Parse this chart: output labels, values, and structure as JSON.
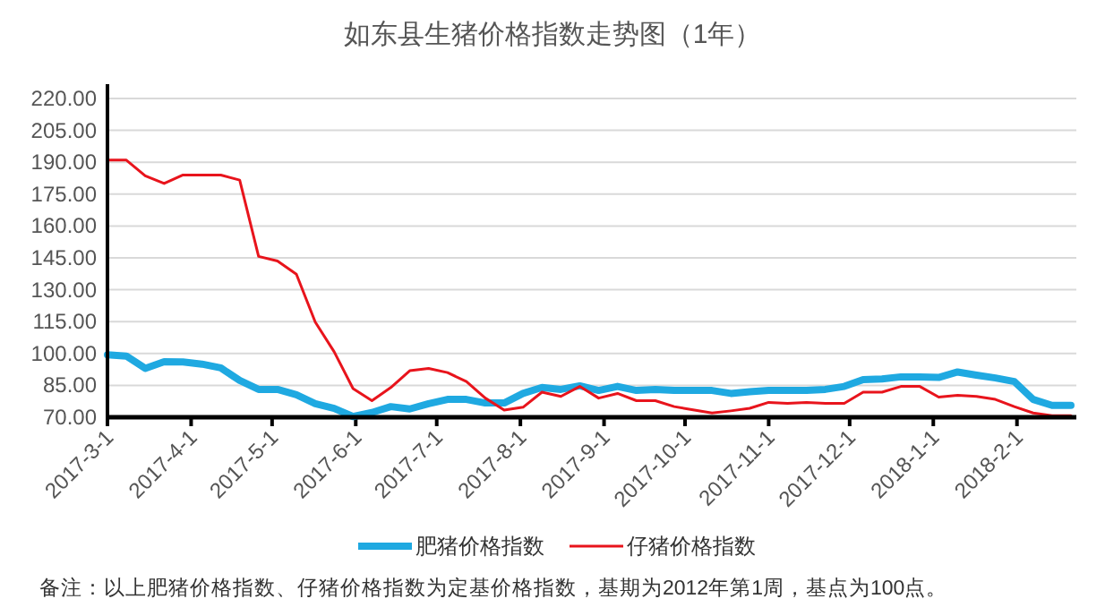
{
  "chart_data": {
    "type": "line",
    "title": "如东县生猪价格指数走势图（1年）",
    "x": [
      "2017-03-01",
      "2017-03-08",
      "2017-03-15",
      "2017-03-22",
      "2017-03-29",
      "2017-04-05",
      "2017-04-12",
      "2017-04-19",
      "2017-04-26",
      "2017-05-03",
      "2017-05-10",
      "2017-05-17",
      "2017-05-24",
      "2017-05-31",
      "2017-06-07",
      "2017-06-14",
      "2017-06-21",
      "2017-06-28",
      "2017-07-05",
      "2017-07-12",
      "2017-07-19",
      "2017-07-26",
      "2017-08-02",
      "2017-08-09",
      "2017-08-16",
      "2017-08-23",
      "2017-08-30",
      "2017-09-06",
      "2017-09-13",
      "2017-09-20",
      "2017-09-27",
      "2017-10-04",
      "2017-10-11",
      "2017-10-18",
      "2017-10-25",
      "2017-11-01",
      "2017-11-08",
      "2017-11-15",
      "2017-11-22",
      "2017-11-29",
      "2017-12-06",
      "2017-12-13",
      "2017-12-20",
      "2017-12-27",
      "2018-01-03",
      "2018-01-10",
      "2018-01-17",
      "2018-01-24",
      "2018-01-31",
      "2018-02-07",
      "2018-02-14",
      "2018-02-21"
    ],
    "series": [
      {
        "name": "肥猪价格指数",
        "color": "#1fa9e1",
        "values": [
          99.4,
          98.8,
          93,
          96.1,
          96,
          95,
          93.2,
          87.3,
          83.1,
          83.1,
          80.6,
          76.4,
          74.2,
          70.3,
          72.2,
          75,
          73.9,
          76.4,
          78.4,
          78.4,
          76.7,
          76.7,
          81.2,
          84,
          83.1,
          84.8,
          82.6,
          84.5,
          82.6,
          83.1,
          82.6,
          82.6,
          82.6,
          81.2,
          82,
          82.6,
          82.6,
          82.6,
          83.1,
          84.5,
          87.7,
          88,
          89,
          89,
          88.7,
          91.3,
          89.8,
          88.5,
          86.8,
          78.4,
          75.6,
          75.6
        ]
      },
      {
        "name": "仔猪价格指数",
        "color": "#e8141c",
        "values": [
          191,
          191,
          183.6,
          180,
          184,
          184,
          184,
          181.6,
          145.7,
          143.5,
          137.3,
          114.8,
          100.8,
          83.5,
          77.8,
          84,
          91.9,
          93,
          91,
          86.8,
          79,
          73.4,
          74.7,
          81.8,
          79.8,
          84.5,
          79,
          81.2,
          77.8,
          77.8,
          75,
          73.5,
          72,
          73,
          74.2,
          77,
          76.5,
          77,
          76.5,
          76.5,
          81.8,
          81.8,
          84.5,
          84.5,
          79.5,
          80.3,
          79.8,
          78.4,
          75,
          72,
          70.7,
          70.7
        ]
      }
    ],
    "xlim": [
      "2017-03-01",
      "2018-02-23"
    ],
    "xticks": [
      {
        "value": "2017-03-01",
        "label": "2017-3-1"
      },
      {
        "value": "2017-04-01",
        "label": "2017-4-1"
      },
      {
        "value": "2017-05-01",
        "label": "2017-5-1"
      },
      {
        "value": "2017-06-01",
        "label": "2017-6-1"
      },
      {
        "value": "2017-07-01",
        "label": "2017-7-1"
      },
      {
        "value": "2017-08-01",
        "label": "2017-8-1"
      },
      {
        "value": "2017-09-01",
        "label": "2017-9-1"
      },
      {
        "value": "2017-10-01",
        "label": "2017-10-1"
      },
      {
        "value": "2017-11-01",
        "label": "2017-11-1"
      },
      {
        "value": "2017-12-01",
        "label": "2017-12-1"
      },
      {
        "value": "2018-01-01",
        "label": "2018-1-1"
      },
      {
        "value": "2018-02-01",
        "label": "2018-2-1"
      }
    ],
    "ylim": [
      70,
      220
    ],
    "yticks": [
      {
        "value": 70,
        "label": "70.00"
      },
      {
        "value": 85,
        "label": "85.00"
      },
      {
        "value": 100,
        "label": "100.00"
      },
      {
        "value": 115,
        "label": "115.00"
      },
      {
        "value": 130,
        "label": "130.00"
      },
      {
        "value": 145,
        "label": "145.00"
      },
      {
        "value": 160,
        "label": "160.00"
      },
      {
        "value": 175,
        "label": "175.00"
      },
      {
        "value": 190,
        "label": "190.00"
      },
      {
        "value": 205,
        "label": "205.00"
      },
      {
        "value": 220,
        "label": "220.00"
      }
    ],
    "grid": "y",
    "legend": "bottom",
    "marker": "none",
    "line_style": "solid",
    "annotations": [
      "备注：以上肥猪价格指数、仔猪价格指数为定基价格指数，基期为2012年第1周，基点为100点。"
    ]
  }
}
